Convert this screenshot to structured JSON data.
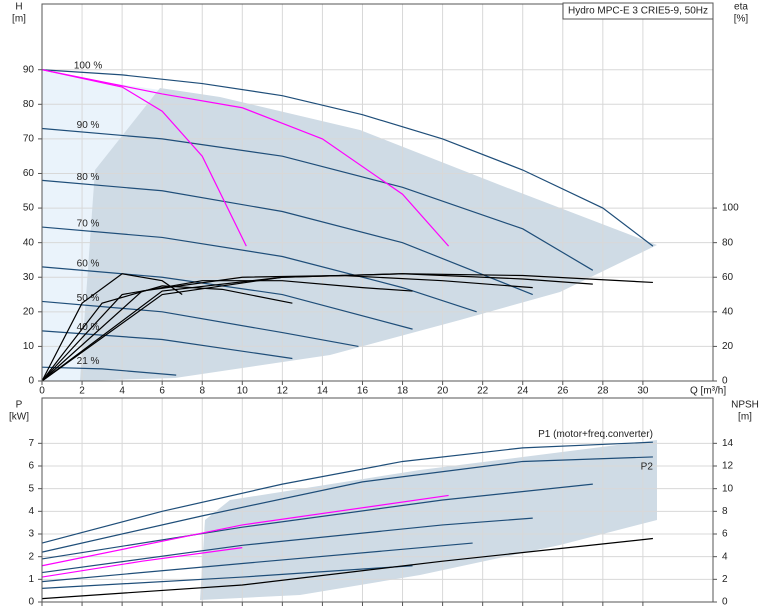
{
  "chart_data": [
    {
      "type": "line",
      "title": "Hydro MPC-E 3 CRIE5-9, 50Hz",
      "x_label": "Q [m³/h]",
      "y_label": "H",
      "y_unit": "[m]",
      "y2_label": "eta",
      "y2_unit": "[%]",
      "xlim": [
        0,
        33.5
      ],
      "ylim": [
        0,
        109
      ],
      "y2lim": [
        0,
        218
      ],
      "xticks": [
        0,
        2,
        4,
        6,
        8,
        10,
        12,
        14,
        16,
        18,
        20,
        22,
        24,
        26,
        28,
        30
      ],
      "yticks": [
        0,
        10,
        20,
        30,
        40,
        50,
        60,
        70,
        80,
        90
      ],
      "y2ticks": [
        0,
        20,
        40,
        60,
        80,
        100
      ],
      "grid": true,
      "series": [
        {
          "label": "100 %",
          "color": "#1f4e79",
          "x": [
            0,
            4,
            8,
            12,
            16,
            20,
            24,
            28,
            30.5
          ],
          "values": [
            90,
            88.5,
            86,
            82.5,
            77,
            70,
            61,
            50,
            39
          ]
        },
        {
          "label": "90 %",
          "color": "#1f4e79",
          "x": [
            0,
            6,
            12,
            18,
            24,
            27.5
          ],
          "values": [
            73,
            70,
            65,
            56,
            44,
            32
          ]
        },
        {
          "label": "80 %",
          "color": "#1f4e79",
          "x": [
            0,
            6,
            12,
            18,
            24.5
          ],
          "values": [
            58,
            55,
            49,
            40,
            25
          ]
        },
        {
          "label": "70 %",
          "color": "#1f4e79",
          "x": [
            0,
            6,
            12,
            18,
            21.7
          ],
          "values": [
            44.5,
            41.5,
            36,
            27,
            20
          ]
        },
        {
          "label": "60 %",
          "color": "#1f4e79",
          "x": [
            0,
            6,
            12,
            18.5
          ],
          "values": [
            33,
            30,
            25,
            15
          ]
        },
        {
          "label": "50 %",
          "color": "#1f4e79",
          "x": [
            0,
            6,
            12,
            15.8
          ],
          "values": [
            23,
            20,
            14,
            10
          ]
        },
        {
          "label": "40 %",
          "color": "#1f4e79",
          "x": [
            0,
            6,
            12.5
          ],
          "values": [
            14.5,
            12,
            6.5
          ]
        },
        {
          "label": "21 %",
          "color": "#1f4e79",
          "x": [
            0,
            3,
            6.7
          ],
          "values": [
            4,
            3.5,
            1.7
          ]
        },
        {
          "color": "#ff00ff",
          "x": [
            0,
            4,
            6,
            8,
            10.2
          ],
          "values": [
            90,
            85,
            78,
            65,
            39
          ]
        },
        {
          "color": "#ff00ff",
          "x": [
            0,
            6,
            10,
            14,
            18,
            20.3
          ],
          "values": [
            90,
            83,
            79,
            70,
            54,
            39
          ]
        },
        {
          "color": "#000000",
          "axis": "y2",
          "x": [
            0,
            6,
            12,
            18,
            24,
            30.5
          ],
          "values": [
            0,
            50,
            60,
            62,
            61,
            57
          ]
        },
        {
          "color": "#000000",
          "axis": "y2",
          "x": [
            0,
            6,
            12,
            18,
            24,
            27.5
          ],
          "values": [
            0,
            52,
            60,
            62,
            59,
            56
          ]
        },
        {
          "color": "#000000",
          "axis": "y2",
          "x": [
            0,
            5,
            10,
            15,
            20,
            24.5
          ],
          "values": [
            0,
            52,
            60,
            61,
            58,
            54
          ]
        },
        {
          "color": "#000000",
          "axis": "y2",
          "x": [
            0,
            4,
            8,
            12,
            16,
            18.5
          ],
          "values": [
            0,
            50,
            58,
            58,
            54,
            52
          ]
        },
        {
          "color": "#000000",
          "axis": "y2",
          "x": [
            0,
            3,
            6,
            9,
            12.5
          ],
          "values": [
            0,
            45,
            55,
            53,
            45
          ]
        },
        {
          "color": "#000000",
          "axis": "y2",
          "x": [
            0,
            2,
            4,
            6,
            7
          ],
          "values": [
            0,
            45,
            62,
            58,
            50
          ]
        }
      ]
    },
    {
      "type": "line",
      "y_label": "P",
      "y_unit": "[kW]",
      "y2_label": "NPSH",
      "y2_unit": "[m]",
      "xlim": [
        0,
        33.5
      ],
      "ylim": [
        0,
        9
      ],
      "y2lim": [
        0,
        18
      ],
      "xticks": [
        0,
        2,
        4,
        6,
        8,
        10,
        12,
        14,
        16,
        18,
        20,
        22,
        24,
        26,
        28,
        30
      ],
      "yticks": [
        0,
        1,
        2,
        3,
        4,
        5,
        6,
        7
      ],
      "y2ticks": [
        0,
        2,
        4,
        6,
        8,
        10,
        12,
        14
      ],
      "grid": true,
      "show_xtick_labels": false,
      "series": [
        {
          "label": "P1 (motor+freq.converter)",
          "color": "#1f4e79",
          "x": [
            0,
            6,
            12,
            18,
            24,
            30.5
          ],
          "values": [
            2.6,
            4,
            5.2,
            6.2,
            6.8,
            7.05
          ]
        },
        {
          "label": "P2",
          "color": "#1f4e79",
          "x": [
            0,
            8,
            16,
            24,
            30.5
          ],
          "values": [
            2.2,
            3.8,
            5.3,
            6.2,
            6.4
          ]
        },
        {
          "color": "#1f4e79",
          "x": [
            0,
            10,
            20,
            27.5
          ],
          "values": [
            1.9,
            3.3,
            4.5,
            5.2
          ]
        },
        {
          "color": "#1f4e79",
          "x": [
            0,
            10,
            20,
            24.5
          ],
          "values": [
            1.3,
            2.5,
            3.4,
            3.7
          ]
        },
        {
          "color": "#1f4e79",
          "x": [
            0,
            10,
            21.5
          ],
          "values": [
            0.9,
            1.7,
            2.6
          ]
        },
        {
          "color": "#1f4e79",
          "x": [
            0,
            10,
            18.5
          ],
          "values": [
            0.6,
            1.1,
            1.6
          ]
        },
        {
          "color": "#ff00ff",
          "x": [
            0,
            5,
            10
          ],
          "values": [
            1.1,
            1.8,
            2.4
          ]
        },
        {
          "color": "#ff00ff",
          "x": [
            0,
            10,
            20.3
          ],
          "values": [
            1.6,
            3.4,
            4.7
          ]
        },
        {
          "color": "#000000",
          "axis": "y2",
          "x": [
            0,
            10,
            20,
            30.5
          ],
          "values": [
            0.3,
            1.5,
            3.6,
            5.6
          ]
        }
      ]
    }
  ]
}
